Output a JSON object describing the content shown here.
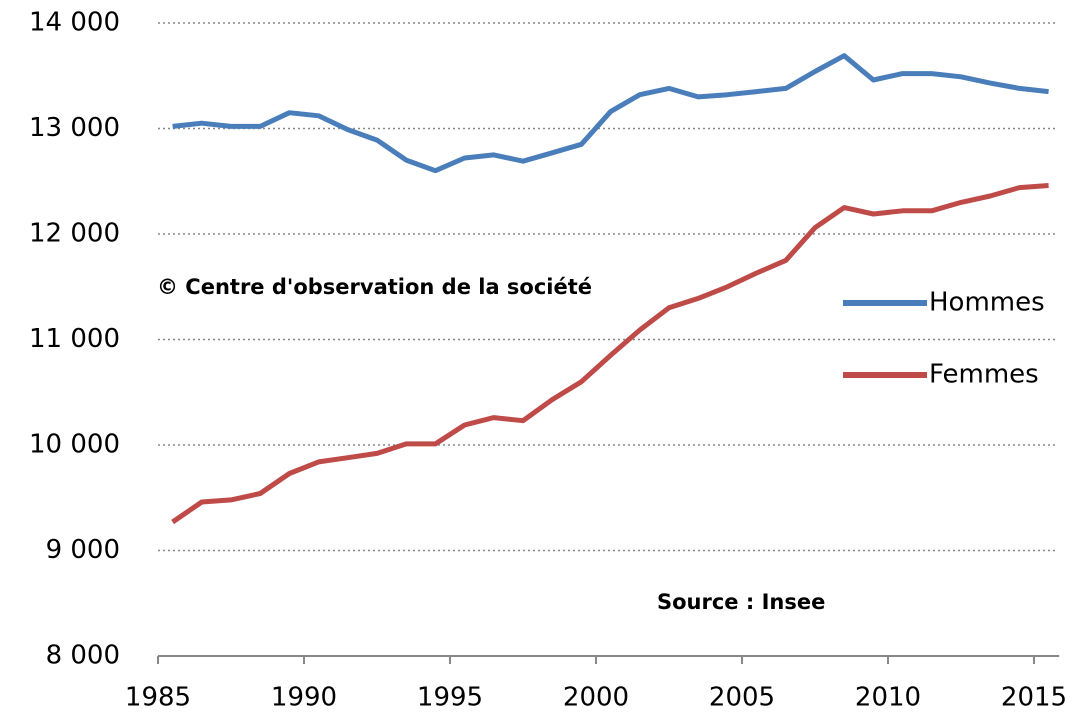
{
  "chart_data": {
    "type": "line",
    "annotations": [
      "© Centre d'observation de la société",
      "Source : Insee"
    ],
    "categories": [
      "1985",
      null,
      null,
      null,
      null,
      "1990",
      null,
      null,
      null,
      null,
      "1995",
      null,
      null,
      null,
      null,
      "2000",
      null,
      null,
      null,
      null,
      "2005",
      null,
      null,
      null,
      null,
      "2010",
      null,
      null,
      null,
      null,
      "2015"
    ],
    "series": [
      {
        "name": "Hommes",
        "color": "#4a7ebb",
        "values": [
          13020,
          13050,
          13020,
          13020,
          13150,
          13120,
          12990,
          12890,
          12700,
          12600,
          12720,
          12750,
          12690,
          12770,
          12850,
          13160,
          13320,
          13380,
          13300,
          13320,
          13350,
          13380,
          13540,
          13690,
          13460,
          13520,
          13520,
          13490,
          13430,
          13380,
          13350
        ]
      },
      {
        "name": "Femmes",
        "color": "#be4b48",
        "values": [
          9270,
          9460,
          9480,
          9540,
          9730,
          9840,
          9880,
          9920,
          10010,
          10010,
          10190,
          10260,
          10230,
          10430,
          10600,
          10850,
          11090,
          11300,
          11390,
          11500,
          11630,
          11750,
          12060,
          12250,
          12190,
          12220,
          12220,
          12300,
          12360,
          12440,
          12460
        ]
      }
    ],
    "ylim": [
      8000,
      14000
    ],
    "yticks": [
      {
        "value": 8000,
        "label": "8 000"
      },
      {
        "value": 9000,
        "label": "9 000"
      },
      {
        "value": 10000,
        "label": "10 000"
      },
      {
        "value": 11000,
        "label": "11 000"
      },
      {
        "value": 12000,
        "label": "12 000"
      },
      {
        "value": 13000,
        "label": "13 000"
      },
      {
        "value": 14000,
        "label": "14 000"
      }
    ],
    "grid": true,
    "legend": "right"
  }
}
